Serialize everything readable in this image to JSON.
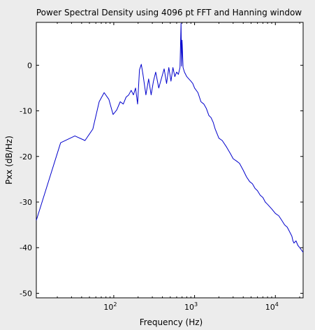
{
  "chart_data": {
    "type": "line",
    "title": "Power Spectral Density using 4096 pt FFT and Hanning window",
    "xlabel": "Frequency (Hz)",
    "ylabel": "Pxx (dB/Hz)",
    "xscale": "log",
    "xlim": [
      11,
      22050
    ],
    "ylim": [
      -51,
      9.4
    ],
    "grid": false,
    "colors": {
      "series": "#0000cc",
      "figure_bg": "#ececec",
      "axes_bg": "#ffffff"
    },
    "x_ticks": [
      {
        "value": 100,
        "base": "10",
        "exp": "2"
      },
      {
        "value": 1000,
        "base": "10",
        "exp": "3"
      },
      {
        "value": 10000,
        "base": "10",
        "exp": "4"
      }
    ],
    "y_ticks": [
      {
        "value": 0,
        "label": "0"
      },
      {
        "value": -10,
        "label": "-10"
      },
      {
        "value": -20,
        "label": "-20"
      },
      {
        "value": -30,
        "label": "-30"
      },
      {
        "value": -40,
        "label": "-40"
      },
      {
        "value": -50,
        "label": "-50"
      }
    ],
    "series": [
      {
        "x": [
          11,
          22,
          33,
          44,
          55,
          66,
          76,
          87,
          98,
          109,
          120,
          131,
          142,
          153,
          164,
          175,
          186,
          197,
          208,
          219,
          230,
          250,
          270,
          290,
          310,
          330,
          360,
          390,
          420,
          450,
          480,
          510,
          540,
          570,
          600,
          630,
          660,
          680,
          690,
          700,
          720,
          750,
          800,
          850,
          900,
          950,
          1000,
          1100,
          1200,
          1300,
          1400,
          1500,
          1600,
          1700,
          1800,
          2000,
          2200,
          2500,
          2800,
          3000,
          3300,
          3600,
          4000,
          4400,
          4800,
          5200,
          5600,
          6000,
          6500,
          7000,
          7500,
          8000,
          9000,
          10000,
          11000,
          12000,
          13000,
          14000,
          15000,
          16000,
          16500,
          17000,
          18000,
          19000,
          20000,
          21000,
          22050
        ],
        "y": [
          -34,
          -17,
          -15.5,
          -16.5,
          -14,
          -8,
          -6,
          -7.5,
          -10.8,
          -9.8,
          -8,
          -8.5,
          -7,
          -6.5,
          -5.5,
          -6.5,
          -5,
          -8.5,
          -1,
          0.2,
          -2,
          -6.5,
          -3,
          -6.5,
          -3.5,
          -1.5,
          -5,
          -2.8,
          -0.8,
          -4,
          -0.5,
          -3.5,
          -0.5,
          -2.5,
          -1.5,
          -2,
          -0.5,
          9.2,
          -0.2,
          5.5,
          -0.5,
          -1.5,
          -2.5,
          -3,
          -3.5,
          -4,
          -5,
          -6,
          -8,
          -8.5,
          -9.5,
          -11,
          -11.5,
          -12.5,
          -14,
          -16,
          -16.5,
          -18,
          -19.5,
          -20.5,
          -21,
          -21.5,
          -23,
          -24.5,
          -25.5,
          -26,
          -27,
          -27.5,
          -28.5,
          -29,
          -30,
          -30.5,
          -31.5,
          -32.5,
          -33,
          -34,
          -35,
          -35.5,
          -36.5,
          -37.5,
          -38.5,
          -39,
          -38.5,
          -39.5,
          -40,
          -40.5,
          -41
        ]
      }
    ]
  }
}
